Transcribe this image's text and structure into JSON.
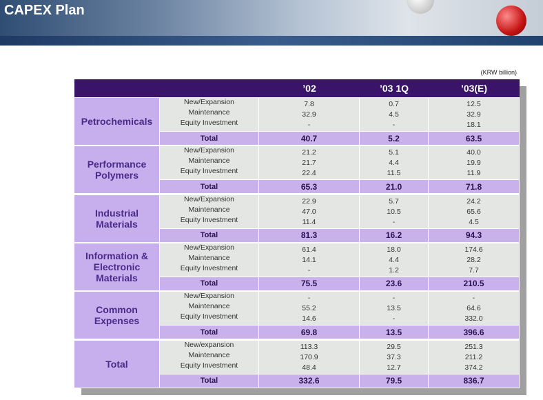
{
  "header": {
    "title": "CAPEX Plan"
  },
  "unit": "(KRW billion)",
  "table": {
    "columns": [
      "’02",
      "’03 1Q",
      "’03(E)"
    ],
    "groups": [
      {
        "name": "Petrochemicals",
        "items": [
          {
            "label": "New/Expansion",
            "values": [
              "7.8",
              "0.7",
              "12.5"
            ]
          },
          {
            "label": "Maintenance",
            "values": [
              "32.9",
              "4.5",
              "32.9"
            ]
          },
          {
            "label": "Equity Investment",
            "values": [
              "-",
              "-",
              "18.1"
            ]
          }
        ],
        "total": {
          "label": "Total",
          "values": [
            "40.7",
            "5.2",
            "63.5"
          ]
        }
      },
      {
        "name": "Performance Polymers",
        "items": [
          {
            "label": "New/Expansion",
            "values": [
              "21.2",
              "5.1",
              "40.0"
            ]
          },
          {
            "label": "Maintenance",
            "values": [
              "21.7",
              "4.4",
              "19.9"
            ]
          },
          {
            "label": "Equity Investment",
            "values": [
              "22.4",
              "11.5",
              "11.9"
            ]
          }
        ],
        "total": {
          "label": "Total",
          "values": [
            "65.3",
            "21.0",
            "71.8"
          ]
        }
      },
      {
        "name": "Industrial Materials",
        "items": [
          {
            "label": "New/Expansion",
            "values": [
              "22.9",
              "5.7",
              "24.2"
            ]
          },
          {
            "label": "Maintenance",
            "values": [
              "47.0",
              "10.5",
              "65.6"
            ]
          },
          {
            "label": "Equity Investment",
            "values": [
              "11.4",
              "-",
              "4.5"
            ]
          }
        ],
        "total": {
          "label": "Total",
          "values": [
            "81.3",
            "16.2",
            "94.3"
          ]
        }
      },
      {
        "name": "Information & Electronic Materials",
        "items": [
          {
            "label": "New/Expansion",
            "values": [
              "61.4",
              "18.0",
              "174.6"
            ]
          },
          {
            "label": "Maintenance",
            "values": [
              "14.1",
              "4.4",
              "28.2"
            ]
          },
          {
            "label": "Equity Investment",
            "values": [
              "-",
              "1.2",
              "7.7"
            ]
          }
        ],
        "total": {
          "label": "Total",
          "values": [
            "75.5",
            "23.6",
            "210.5"
          ]
        }
      },
      {
        "name": "Common Expenses",
        "items": [
          {
            "label": "New/Expansion",
            "values": [
              "-",
              "-",
              "-"
            ]
          },
          {
            "label": "Maintenance",
            "values": [
              "55.2",
              "13.5",
              "64.6"
            ]
          },
          {
            "label": "Equity Investment",
            "values": [
              "14.6",
              "-",
              "332.0"
            ]
          }
        ],
        "total": {
          "label": "Total",
          "values": [
            "69.8",
            "13.5",
            "396.6"
          ]
        }
      },
      {
        "name": "Total",
        "items": [
          {
            "label": "New/expansion",
            "values": [
              "113.3",
              "29.5",
              "251.3"
            ]
          },
          {
            "label": "Maintenance",
            "values": [
              "170.9",
              "37.3",
              "211.2"
            ]
          },
          {
            "label": "Equity Investment",
            "values": [
              "48.4",
              "12.7",
              "374.2"
            ]
          }
        ],
        "total": {
          "label": "Total",
          "values": [
            "332.6",
            "79.5",
            "836.7"
          ]
        }
      }
    ]
  }
}
